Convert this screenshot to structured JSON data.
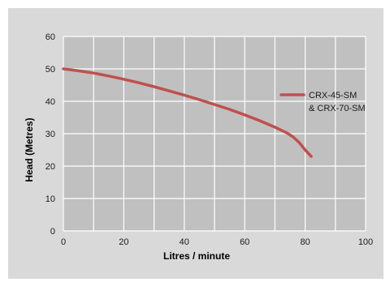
{
  "chart_data": {
    "type": "line",
    "title": "",
    "xlabel": "Litres / minute",
    "ylabel": "Head (Metres)",
    "xlim": [
      0,
      100
    ],
    "ylim": [
      0,
      60
    ],
    "xticks": [
      "0",
      "20",
      "40",
      "60",
      "80",
      "100"
    ],
    "yticks": [
      "0",
      "10",
      "20",
      "30",
      "40",
      "50",
      "60"
    ],
    "grid": true,
    "legend_position": "right",
    "series": [
      {
        "name_lines": [
          "CRX-45-SM",
          "& CRX-70-SM"
        ],
        "color": "#c0504d",
        "x": [
          0,
          5,
          10,
          15,
          20,
          25,
          30,
          35,
          40,
          45,
          50,
          55,
          60,
          65,
          70,
          74,
          76,
          78,
          80,
          82
        ],
        "y": [
          50,
          49.4,
          48.7,
          47.8,
          46.8,
          45.7,
          44.5,
          43.2,
          41.9,
          40.5,
          39.0,
          37.5,
          35.8,
          34.0,
          32.0,
          30.2,
          29.0,
          27.3,
          25.0,
          23.0
        ]
      }
    ]
  },
  "colors": {
    "background": "#d9d9d9",
    "plot_area": "#c0c0c0",
    "gridline": "#ffffff",
    "series": "#c0504d"
  }
}
